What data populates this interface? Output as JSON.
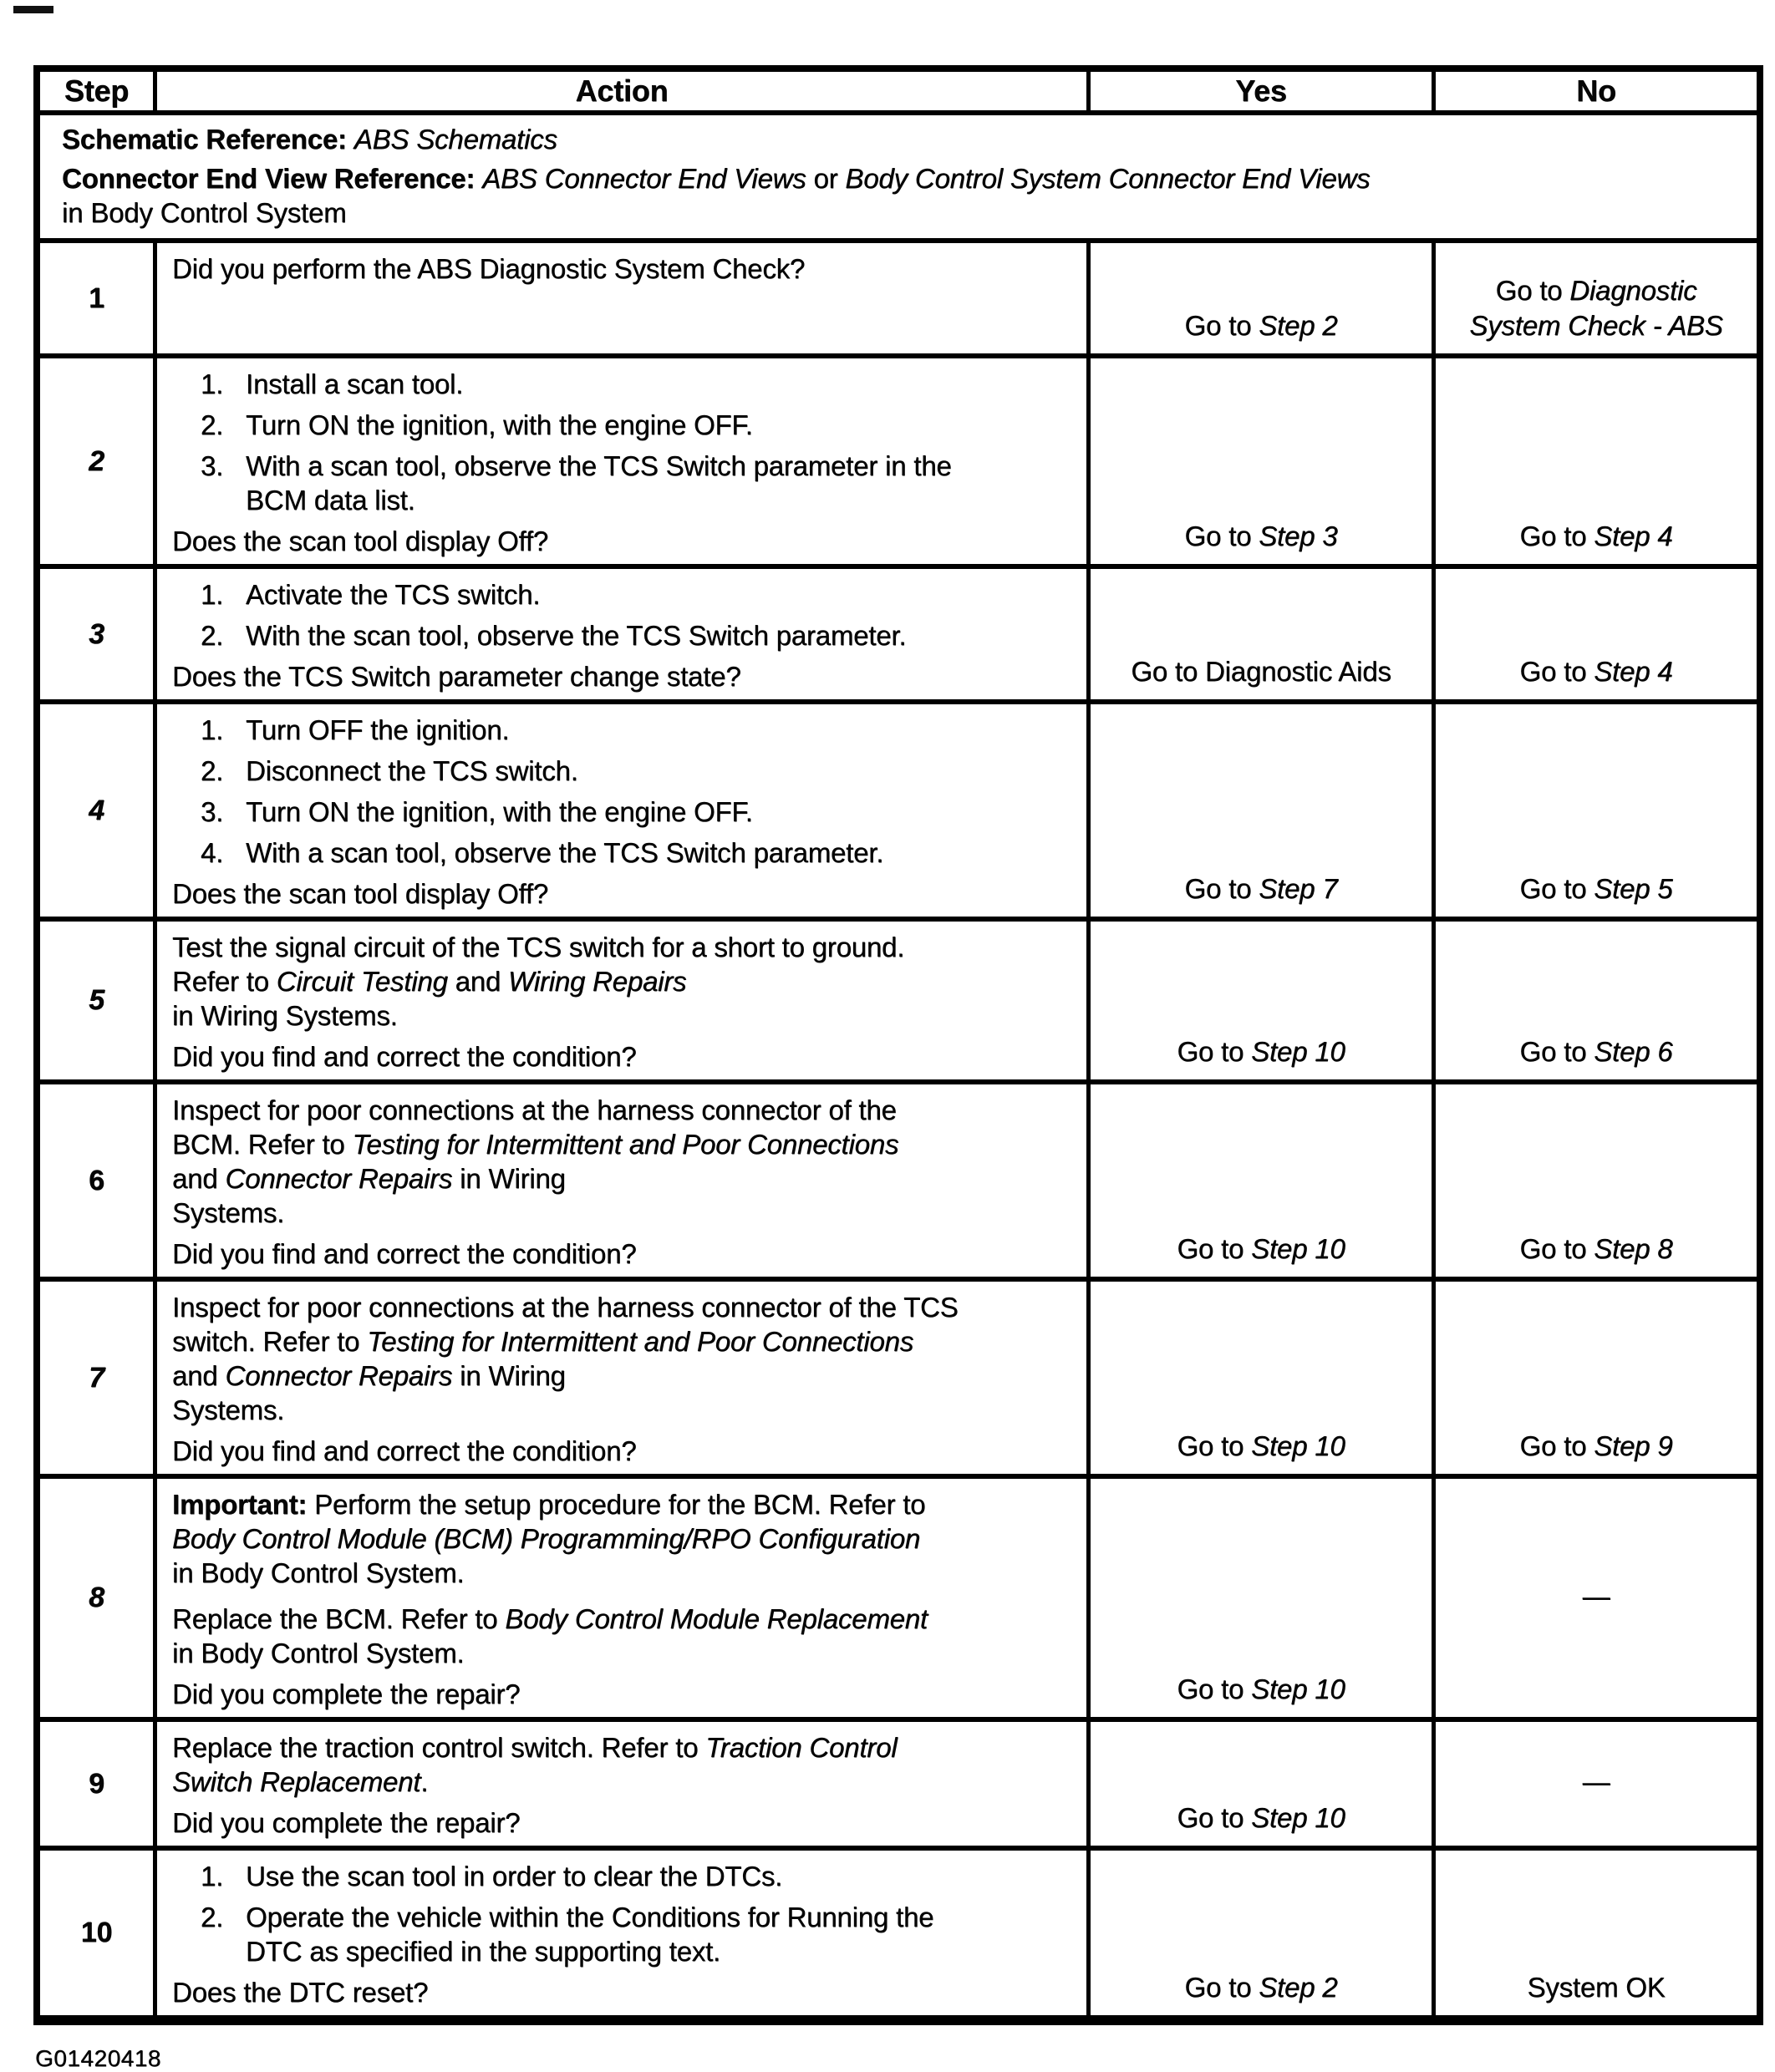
{
  "header": {
    "step": "Step",
    "action": "Action",
    "yes": "Yes",
    "no": "No"
  },
  "references": [
    {
      "name": "schematic-reference-line",
      "segments": [
        {
          "t": "Schematic Reference: ",
          "b": true
        },
        {
          "t": "ABS Schematics",
          "i": true
        }
      ]
    },
    {
      "name": "connector-end-view-reference-line",
      "segments": [
        {
          "t": "Connector End View Reference: ",
          "b": true
        },
        {
          "t": "ABS Connector End Views",
          "i": true
        },
        {
          "t": " or "
        },
        {
          "t": "Body Control System Connector End Views",
          "i": true
        },
        {
          "t": "\nin Body Control System"
        }
      ]
    }
  ],
  "steps": [
    {
      "step": "1",
      "italic": false,
      "blocks": [
        {
          "type": "p",
          "segments": [
            {
              "t": "Did you perform the ABS Diagnostic System Check?"
            }
          ]
        }
      ],
      "question": null,
      "yes": [
        {
          "t": "Go to "
        },
        {
          "t": "Step 2",
          "i": true
        }
      ],
      "no": [
        {
          "t": "Go to "
        },
        {
          "t": "Diagnostic\nSystem Check - ABS",
          "i": true
        }
      ],
      "no_align": "bottom"
    },
    {
      "step": "2",
      "italic": true,
      "blocks": [
        {
          "type": "ol",
          "items": [
            {
              "n": "1.",
              "segments": [
                {
                  "t": "Install a scan tool."
                }
              ]
            },
            {
              "n": "2.",
              "segments": [
                {
                  "t": "Turn ON the ignition, with the engine OFF."
                }
              ]
            },
            {
              "n": "3.",
              "segments": [
                {
                  "t": "With a scan tool, observe the TCS Switch parameter in the\nBCM data list."
                }
              ]
            }
          ]
        }
      ],
      "question": [
        {
          "t": "Does the scan tool display Off?"
        }
      ],
      "yes": [
        {
          "t": "Go to "
        },
        {
          "t": "Step 3",
          "i": true
        }
      ],
      "no": [
        {
          "t": "Go to "
        },
        {
          "t": "Step 4",
          "i": true
        }
      ],
      "no_align": "bottom"
    },
    {
      "step": "3",
      "italic": true,
      "blocks": [
        {
          "type": "ol",
          "items": [
            {
              "n": "1.",
              "segments": [
                {
                  "t": "Activate the TCS switch."
                }
              ]
            },
            {
              "n": "2.",
              "segments": [
                {
                  "t": "With the scan tool, observe the TCS Switch parameter."
                }
              ]
            }
          ]
        }
      ],
      "question": [
        {
          "t": "Does the TCS Switch parameter change state?"
        }
      ],
      "yes": [
        {
          "t": "Go to Diagnostic Aids"
        }
      ],
      "no": [
        {
          "t": "Go to "
        },
        {
          "t": "Step 4",
          "i": true
        }
      ],
      "no_align": "bottom"
    },
    {
      "step": "4",
      "italic": true,
      "blocks": [
        {
          "type": "ol",
          "items": [
            {
              "n": "1.",
              "segments": [
                {
                  "t": "Turn OFF the ignition."
                }
              ]
            },
            {
              "n": "2.",
              "segments": [
                {
                  "t": "Disconnect the TCS switch."
                }
              ]
            },
            {
              "n": "3.",
              "segments": [
                {
                  "t": "Turn ON the ignition, with the engine OFF."
                }
              ]
            },
            {
              "n": "4.",
              "segments": [
                {
                  "t": "With a scan tool, observe the TCS Switch parameter."
                }
              ]
            }
          ]
        }
      ],
      "question": [
        {
          "t": "Does the scan tool display Off?"
        }
      ],
      "yes": [
        {
          "t": "Go to "
        },
        {
          "t": "Step 7",
          "i": true
        }
      ],
      "no": [
        {
          "t": "Go to "
        },
        {
          "t": "Step 5",
          "i": true
        }
      ],
      "no_align": "bottom"
    },
    {
      "step": "5",
      "italic": true,
      "blocks": [
        {
          "type": "p",
          "segments": [
            {
              "t": "Test the signal circuit of the TCS switch for a short to ground.\nRefer to "
            },
            {
              "t": "Circuit Testing",
              "i": true
            },
            {
              "t": " and "
            },
            {
              "t": "Wiring Repairs",
              "i": true
            },
            {
              "t": "\nin Wiring Systems."
            }
          ]
        }
      ],
      "question": [
        {
          "t": "Did you find and correct the condition?"
        }
      ],
      "yes": [
        {
          "t": "Go to "
        },
        {
          "t": "Step 10",
          "i": true
        }
      ],
      "no": [
        {
          "t": "Go to "
        },
        {
          "t": "Step 6",
          "i": true
        }
      ],
      "no_align": "bottom"
    },
    {
      "step": "6",
      "italic": false,
      "blocks": [
        {
          "type": "p",
          "segments": [
            {
              "t": "Inspect for poor connections at the harness connector of the\nBCM. Refer to "
            },
            {
              "t": "Testing for Intermittent and Poor Connections",
              "i": true
            },
            {
              "t": "\nand "
            },
            {
              "t": "Connector Repairs",
              "i": true
            },
            {
              "t": " in Wiring\nSystems."
            }
          ]
        }
      ],
      "question": [
        {
          "t": "Did you find and correct the condition?"
        }
      ],
      "yes": [
        {
          "t": "Go to "
        },
        {
          "t": "Step 10",
          "i": true
        }
      ],
      "no": [
        {
          "t": "Go to "
        },
        {
          "t": "Step 8",
          "i": true
        }
      ],
      "no_align": "bottom"
    },
    {
      "step": "7",
      "italic": true,
      "blocks": [
        {
          "type": "p",
          "segments": [
            {
              "t": "Inspect for poor connections at the harness connector of the TCS\nswitch. Refer to "
            },
            {
              "t": "Testing for Intermittent and Poor Connections",
              "i": true
            },
            {
              "t": "\nand "
            },
            {
              "t": "Connector Repairs",
              "i": true
            },
            {
              "t": " in Wiring\nSystems."
            }
          ]
        }
      ],
      "question": [
        {
          "t": "Did you find and correct the condition?"
        }
      ],
      "yes": [
        {
          "t": "Go to "
        },
        {
          "t": "Step 10",
          "i": true
        }
      ],
      "no": [
        {
          "t": "Go to "
        },
        {
          "t": "Step 9",
          "i": true
        }
      ],
      "no_align": "bottom"
    },
    {
      "step": "8",
      "italic": true,
      "blocks": [
        {
          "type": "p",
          "segments": [
            {
              "t": "Important:",
              "b": true
            },
            {
              "t": " Perform the setup procedure for the BCM. Refer to\n"
            },
            {
              "t": "Body Control Module (BCM) Programming/RPO Configuration",
              "i": true
            },
            {
              "t": "\nin Body Control System."
            }
          ]
        },
        {
          "type": "p",
          "segments": [
            {
              "t": "Replace the BCM. Refer to "
            },
            {
              "t": "Body Control Module Replacement",
              "i": true
            },
            {
              "t": "\nin Body Control System."
            }
          ]
        }
      ],
      "question": [
        {
          "t": "Did you complete the repair?"
        }
      ],
      "yes": [
        {
          "t": "Go to "
        },
        {
          "t": "Step 10",
          "i": true
        }
      ],
      "no": [
        {
          "t": "—"
        }
      ],
      "no_align": "middle"
    },
    {
      "step": "9",
      "italic": false,
      "blocks": [
        {
          "type": "p",
          "segments": [
            {
              "t": "Replace the traction control switch. Refer to "
            },
            {
              "t": "Traction Control\nSwitch Replacement",
              "i": true
            },
            {
              "t": "."
            }
          ]
        }
      ],
      "question": [
        {
          "t": "Did you complete the repair?"
        }
      ],
      "yes": [
        {
          "t": "Go to "
        },
        {
          "t": "Step 10",
          "i": true
        }
      ],
      "no": [
        {
          "t": "—"
        }
      ],
      "no_align": "middle"
    },
    {
      "step": "10",
      "italic": false,
      "blocks": [
        {
          "type": "ol",
          "items": [
            {
              "n": "1.",
              "segments": [
                {
                  "t": "Use the scan tool in order to clear the DTCs."
                }
              ]
            },
            {
              "n": "2.",
              "segments": [
                {
                  "t": "Operate the vehicle within the Conditions for Running the\nDTC as specified in the supporting text."
                }
              ]
            }
          ]
        }
      ],
      "question": [
        {
          "t": "Does the DTC reset?"
        }
      ],
      "yes": [
        {
          "t": "Go to "
        },
        {
          "t": "Step 2",
          "i": true
        }
      ],
      "no": [
        {
          "t": "System OK"
        }
      ],
      "no_align": "bottom"
    }
  ],
  "footer": {
    "figure_id": "G01420418"
  }
}
